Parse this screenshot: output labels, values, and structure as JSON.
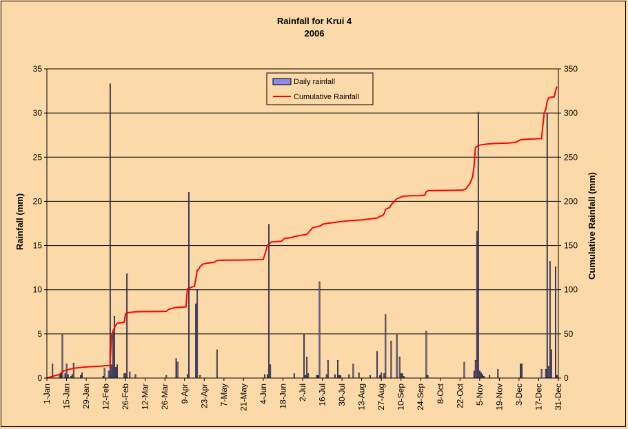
{
  "chart_data": {
    "type": "bar+line",
    "title": "Rainfall for Krui 4",
    "subtitle": "2006",
    "ylabel": "Rainfall (mm)",
    "y2label": "Cumulative Rainfall (mm)",
    "ylim": [
      0,
      35
    ],
    "y2lim": [
      0,
      350
    ],
    "y_ticks": [
      "0",
      "5",
      "10",
      "15",
      "20",
      "25",
      "30",
      "35"
    ],
    "y2_ticks": [
      "0",
      "50",
      "100",
      "150",
      "200",
      "250",
      "300",
      "350"
    ],
    "x_ticks": [
      {
        "day": 1,
        "label": "1-Jan"
      },
      {
        "day": 15,
        "label": "15-Jan"
      },
      {
        "day": 29,
        "label": "29-Jan"
      },
      {
        "day": 43,
        "label": "12-Feb"
      },
      {
        "day": 57,
        "label": "26-Feb"
      },
      {
        "day": 71,
        "label": "12-Mar"
      },
      {
        "day": 85,
        "label": "26-Mar"
      },
      {
        "day": 99,
        "label": "9-Apr"
      },
      {
        "day": 113,
        "label": "23-Apr"
      },
      {
        "day": 127,
        "label": "7-May"
      },
      {
        "day": 141,
        "label": "21-May"
      },
      {
        "day": 155,
        "label": "4-Jun"
      },
      {
        "day": 169,
        "label": "18-Jun"
      },
      {
        "day": 183,
        "label": "2-Jul"
      },
      {
        "day": 197,
        "label": "16-Jul"
      },
      {
        "day": 211,
        "label": "30-Jul"
      },
      {
        "day": 225,
        "label": "13-Aug"
      },
      {
        "day": 239,
        "label": "27-Aug"
      },
      {
        "day": 253,
        "label": "10-Sep"
      },
      {
        "day": 267,
        "label": "24-Sep"
      },
      {
        "day": 281,
        "label": "8-Oct"
      },
      {
        "day": 295,
        "label": "22-Oct"
      },
      {
        "day": 309,
        "label": "5-Nov"
      },
      {
        "day": 323,
        "label": "19-Nov"
      },
      {
        "day": 337,
        "label": "3-Dec"
      },
      {
        "day": 351,
        "label": "17-Dec"
      },
      {
        "day": 365,
        "label": "31-Dec"
      }
    ],
    "xlim": [
      1,
      365
    ],
    "legend_position": "top-center",
    "grid": "horizontal",
    "series": [
      {
        "name": "Daily rainfall",
        "type": "bar",
        "color": "#8a8ae8",
        "x": [
          5,
          10,
          11,
          12,
          14,
          15,
          16,
          18,
          19,
          20,
          25,
          26,
          41,
          42,
          45,
          46,
          47,
          48,
          49,
          50,
          51,
          56,
          57,
          58,
          60,
          64,
          86,
          93,
          94,
          101,
          102,
          107,
          108,
          110,
          122,
          156,
          158,
          159,
          160,
          177,
          184,
          185,
          186,
          187,
          193,
          194,
          195,
          200,
          201,
          206,
          208,
          209,
          210,
          216,
          219,
          223,
          231,
          236,
          238,
          239,
          241,
          242,
          246,
          250,
          252,
          253,
          254,
          255,
          271,
          272,
          271.5,
          298,
          305,
          306,
          307,
          308,
          309,
          310,
          311,
          312,
          316,
          322,
          338,
          339,
          353,
          356,
          357,
          358,
          359,
          360,
          363,
          364
        ],
        "values": [
          1.6,
          0.4,
          0.6,
          4.9,
          0.5,
          1.6,
          0.4,
          0.2,
          0.4,
          1.7,
          0.3,
          0.6,
          0.2,
          1.1,
          0.8,
          33.3,
          1.5,
          5.2,
          7.0,
          1.2,
          1.5,
          0.5,
          0.5,
          11.8,
          0.7,
          0.4,
          0.3,
          2.2,
          1.8,
          0.4,
          21.0,
          8.4,
          10.0,
          0.3,
          3.2,
          0.4,
          0.4,
          17.4,
          1.5,
          0.5,
          4.9,
          0.3,
          2.4,
          0.5,
          0.3,
          0.3,
          10.9,
          0.4,
          2.0,
          0.4,
          2.0,
          0.3,
          0.3,
          0.4,
          1.6,
          0.6,
          0.3,
          3.0,
          0.3,
          0.6,
          0.5,
          7.2,
          4.2,
          4.9,
          2.4,
          0.5,
          0.5,
          0.2,
          5.3,
          0.3,
          0.3,
          1.8,
          0.8,
          2.0,
          16.6,
          30.1,
          0.8,
          0.6,
          0.4,
          0.2,
          0.3,
          1.0,
          1.6,
          1.6,
          1.0,
          1.0,
          30.0,
          1.3,
          13.2,
          3.2,
          12.6,
          0.3
        ]
      },
      {
        "name": "Cumulative Rainfall",
        "type": "line",
        "color": "#ff0000",
        "axis": "right",
        "x": [
          1,
          5,
          10,
          12,
          13,
          16,
          20,
          25,
          30,
          35,
          40,
          42,
          45,
          46,
          47,
          48,
          50,
          51,
          56,
          57,
          58,
          60,
          64,
          70,
          80,
          86,
          88,
          93,
          95,
          100,
          101,
          102,
          103,
          104,
          106,
          107,
          108,
          109,
          110,
          112,
          115,
          120,
          122,
          125,
          130,
          140,
          150,
          155,
          158,
          159,
          160,
          161,
          165,
          168,
          170,
          175,
          177,
          183,
          185,
          186,
          190,
          195,
          196,
          197,
          200,
          205,
          210,
          215,
          220,
          225,
          230,
          236,
          238,
          240,
          241,
          242,
          245,
          246,
          247,
          250,
          252,
          253,
          255,
          260,
          265,
          270,
          271,
          272,
          280,
          290,
          297,
          299,
          300,
          302,
          304,
          305,
          306,
          307,
          308,
          310,
          315,
          320,
          330,
          335,
          337,
          339,
          345,
          353,
          355,
          356,
          357,
          358,
          360,
          362,
          363,
          364
        ],
        "values": [
          0,
          2,
          4,
          7,
          8,
          9.5,
          11,
          12,
          12.6,
          13.2,
          13.5,
          14,
          14,
          15,
          48,
          53,
          60,
          62,
          63,
          73,
          74,
          74.3,
          75,
          75.2,
          75.3,
          75.5,
          78,
          80,
          80,
          80.5,
          101,
          101,
          102,
          103,
          104,
          112,
          122,
          123,
          126,
          129,
          130,
          131,
          133,
          133.4,
          133.5,
          133.6,
          134,
          134.3,
          150,
          152,
          153,
          154,
          154.5,
          155,
          158,
          159,
          160,
          162,
          162.3,
          162.5,
          170,
          172,
          172.5,
          174,
          175,
          176,
          177,
          178,
          178.5,
          179,
          180,
          181,
          183,
          184,
          186,
          191,
          193,
          196,
          198,
          203,
          204,
          205,
          206,
          206.3,
          206.5,
          207,
          211,
          212,
          212.3,
          212.5,
          212.8,
          214,
          216,
          220,
          228,
          240,
          261,
          262,
          263,
          264,
          265,
          265.5,
          266,
          267,
          269,
          270,
          270.5,
          271,
          301,
          304,
          313,
          317,
          318,
          318.3,
          325,
          330
        ]
      }
    ]
  }
}
